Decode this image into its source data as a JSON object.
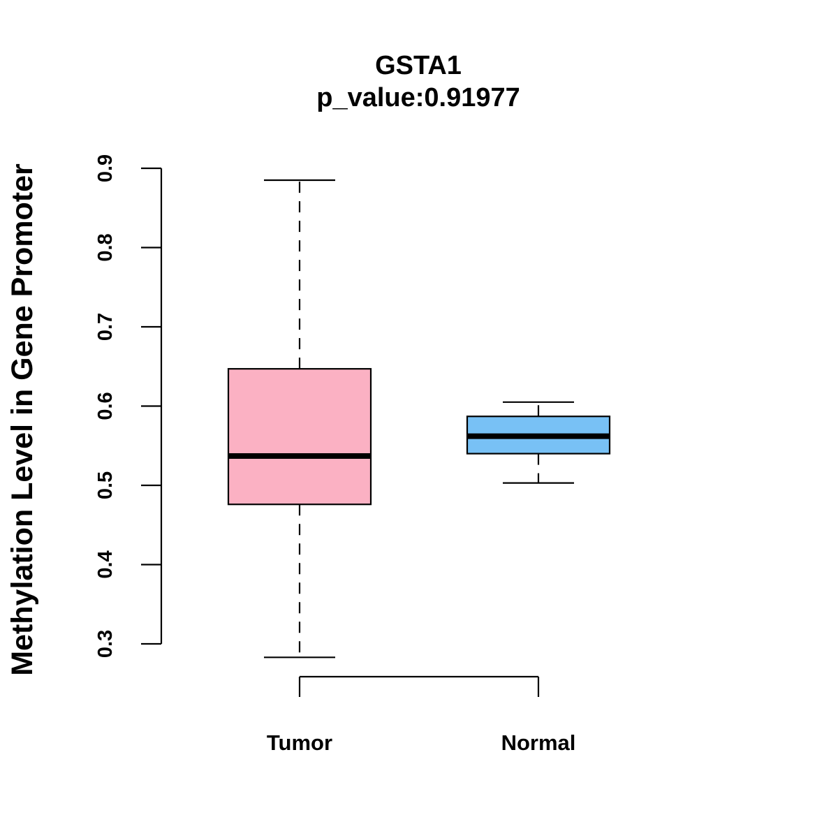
{
  "chart_data": {
    "type": "boxplot",
    "title": "GSTA1",
    "subtitle": "p_value:0.91977",
    "xlabel": "",
    "ylabel": "Methylation Level in Gene Promoter",
    "ylim": [
      0.3,
      0.9
    ],
    "yticks": [
      0.3,
      0.4,
      0.5,
      0.6,
      0.7,
      0.8,
      0.9
    ],
    "ytick_labels": [
      "0.3",
      "0.4",
      "0.5",
      "0.6",
      "0.7",
      "0.8",
      "0.9"
    ],
    "grid": false,
    "categories": [
      "Tumor",
      "Normal"
    ],
    "boxes": [
      {
        "name": "Tumor",
        "min": 0.283,
        "q1": 0.476,
        "median": 0.537,
        "q3": 0.647,
        "max": 0.885,
        "color": "#FBB1C3"
      },
      {
        "name": "Normal",
        "min": 0.503,
        "q1": 0.54,
        "median": 0.562,
        "q3": 0.587,
        "max": 0.605,
        "color": "#78C1F5"
      }
    ]
  }
}
